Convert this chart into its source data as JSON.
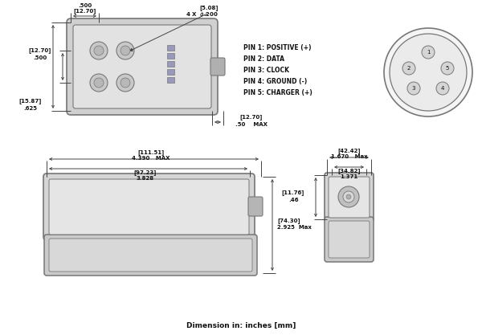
{
  "bg": "#ffffff",
  "lc": "#777777",
  "dc": "#444444",
  "tc": "#111111",
  "fw": 6.0,
  "fh": 4.17,
  "dpi": 100,
  "footer": "Dimension in: inches [mm]",
  "pins": [
    "PIN 1: POSITIVE (+)",
    "PIN 2: DATA",
    "PIN 3: CLOCK",
    "PIN 4: GROUND (-)",
    "PIN 5: CHARGER (+)"
  ],
  "face_fc": "#d8d8d8",
  "face_inner_fc": "#e8e8e8",
  "hole_fc": "#c0c0c0",
  "nub_fc": "#b8b8b8",
  "tab_fc": "#cccccc",
  "led_fc": "#a8a8cc",
  "conn_fc": "#e0e0e0"
}
